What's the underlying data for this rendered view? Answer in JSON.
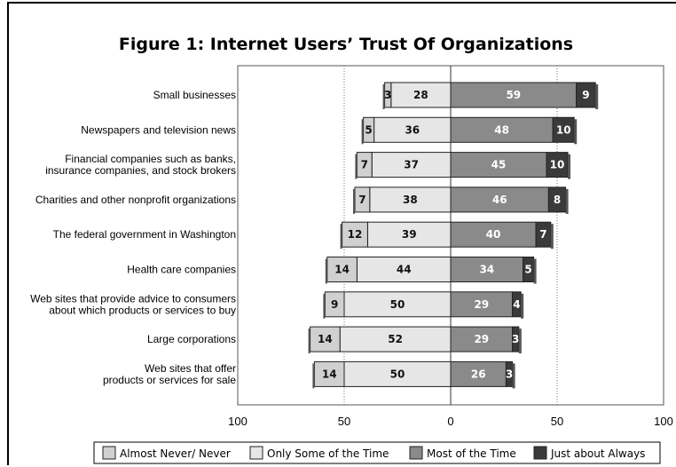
{
  "chart_data": {
    "type": "bar",
    "orientation": "horizontal-diverging",
    "title": "Figure 1: Internet Users’ Trust Of Organizations",
    "categories": [
      [
        "Small businesses"
      ],
      [
        "Newspapers and television news"
      ],
      [
        "Financial companies such as banks,",
        "insurance companies, and stock brokers"
      ],
      [
        "Charities and other nonprofit organizations"
      ],
      [
        "The federal government in Washington"
      ],
      [
        "Health care companies"
      ],
      [
        "Web sites that provide advice to consumers",
        "about which products or services to buy"
      ],
      [
        "Large corporations"
      ],
      [
        "Web sites that offer",
        "products or services for sale"
      ]
    ],
    "series": [
      {
        "name": "Almost Never/ Never",
        "side": "negative",
        "color": "#d0d0d0",
        "values": [
          3,
          5,
          7,
          7,
          12,
          14,
          9,
          14,
          14
        ]
      },
      {
        "name": "Only Some of the Time",
        "side": "negative",
        "color": "#e6e6e6",
        "values": [
          28,
          36,
          37,
          38,
          39,
          44,
          50,
          52,
          50
        ]
      },
      {
        "name": "Most of the Time",
        "side": "positive",
        "color": "#8a8a8a",
        "values": [
          59,
          48,
          45,
          46,
          40,
          34,
          29,
          29,
          26
        ]
      },
      {
        "name": "Just about Always",
        "side": "positive",
        "color": "#3a3a3a",
        "values": [
          9,
          10,
          10,
          8,
          7,
          5,
          4,
          3,
          3
        ]
      }
    ],
    "x_ticks": [
      "100",
      "50",
      "0",
      "50",
      "100"
    ],
    "xlim": [
      -100,
      100
    ],
    "grid": "vertical dotted at -50 and 50",
    "legend_position": "bottom"
  }
}
